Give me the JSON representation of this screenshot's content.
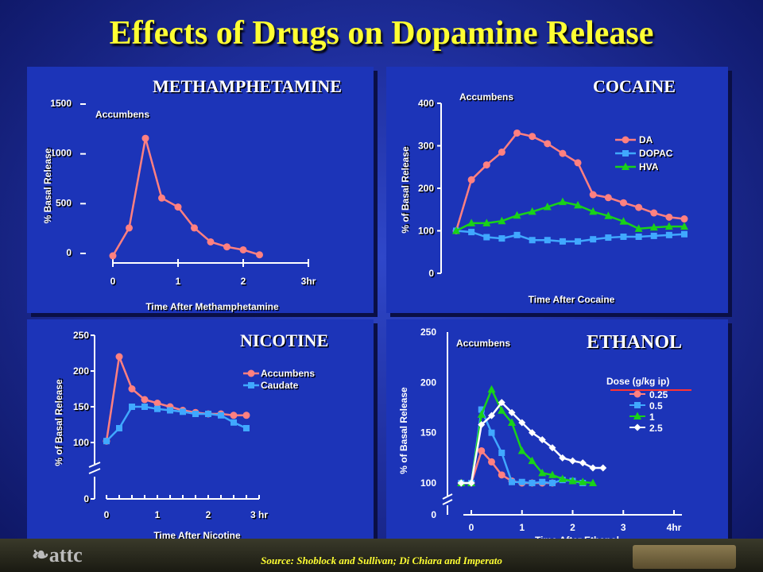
{
  "slide": {
    "title": "Effects of Drugs on Dopamine Release",
    "source": "Source: Shoblock and Sullivan; Di Chiara and Imperato"
  },
  "colors": {
    "title": "#ffff33",
    "panel": "#1c34b8",
    "series_pink": "#ff8080",
    "series_blue": "#40a8ff",
    "series_green": "#19d219",
    "series_white": "#ffffff"
  },
  "chart_data": [
    {
      "id": "meth",
      "type": "line",
      "title": "METHAMPHETAMINE",
      "annotation": "Accumbens",
      "xlabel": "Time After Methamphetamine",
      "ylabel": "% Basal Release",
      "xticks": [
        "0",
        "1",
        "2",
        "3hr"
      ],
      "yticks": [
        "0",
        "500",
        "1000",
        "1500"
      ],
      "xlim": [
        0,
        3
      ],
      "ylim": [
        0,
        1500
      ],
      "series": [
        {
          "color": "#ff8080",
          "marker": "circle",
          "x": [
            0,
            0.25,
            0.5,
            0.75,
            1.0,
            1.25,
            1.5,
            1.75,
            2.0,
            2.25
          ],
          "values": [
            0,
            280,
            1180,
            580,
            490,
            280,
            140,
            90,
            60,
            10
          ]
        }
      ]
    },
    {
      "id": "cocaine",
      "type": "line",
      "title": "COCAINE",
      "annotation": "Accumbens",
      "xlabel": "Time After Cocaine",
      "ylabel": "% of Basal Release",
      "yticks": [
        "0",
        "100",
        "200",
        "300",
        "400"
      ],
      "ylim": [
        0,
        400
      ],
      "series": [
        {
          "name": "DA",
          "color": "#ff8080",
          "marker": "circle",
          "values": [
            100,
            220,
            255,
            285,
            330,
            322,
            305,
            282,
            260,
            185,
            178,
            166,
            155,
            142,
            132,
            128
          ]
        },
        {
          "name": "DOPAC",
          "color": "#40a8ff",
          "marker": "square",
          "values": [
            100,
            97,
            85,
            82,
            90,
            78,
            78,
            75,
            75,
            80,
            84,
            86,
            86,
            88,
            90,
            92
          ]
        },
        {
          "name": "HVA",
          "color": "#19d219",
          "marker": "triangle",
          "values": [
            100,
            118,
            118,
            123,
            136,
            145,
            156,
            168,
            160,
            145,
            135,
            122,
            105,
            108,
            110,
            110
          ]
        }
      ]
    },
    {
      "id": "nicotine",
      "type": "line",
      "title": "NICOTINE",
      "xlabel": "Time After Nicotine",
      "ylabel": "% of Basal Release",
      "xticks": [
        "0",
        "1",
        "2",
        "3 hr"
      ],
      "yticks": [
        "0",
        "100",
        "150",
        "200",
        "250"
      ],
      "xlim": [
        0,
        3
      ],
      "ylim": [
        0,
        250
      ],
      "axis_break": "y",
      "series": [
        {
          "name": "Accumbens",
          "color": "#ff8080",
          "marker": "circle",
          "x": [
            0,
            0.25,
            0.5,
            0.75,
            1.0,
            1.25,
            1.5,
            1.75,
            2.0,
            2.25,
            2.5,
            2.75
          ],
          "values": [
            102,
            220,
            175,
            160,
            155,
            150,
            145,
            142,
            140,
            140,
            138,
            138
          ]
        },
        {
          "name": "Caudate",
          "color": "#40a8ff",
          "marker": "square",
          "x": [
            0,
            0.25,
            0.5,
            0.75,
            1.0,
            1.25,
            1.5,
            1.75,
            2.0,
            2.25,
            2.5,
            2.75
          ],
          "values": [
            102,
            120,
            150,
            150,
            147,
            145,
            143,
            140,
            140,
            138,
            128,
            120
          ]
        }
      ]
    },
    {
      "id": "ethanol",
      "type": "line",
      "title": "ETHANOL",
      "annotation": "Accumbens",
      "xlabel": "Time After Ethanol",
      "ylabel": "% of Basal Release",
      "xticks": [
        "0",
        "1",
        "2",
        "3",
        "4hr"
      ],
      "yticks": [
        "0",
        "100",
        "150",
        "200",
        "250"
      ],
      "xlim": [
        0,
        4
      ],
      "ylim": [
        0,
        250
      ],
      "axis_break": "y",
      "legend_title": "Dose (g/kg ip)",
      "series": [
        {
          "name": "0.25",
          "color": "#ff8080",
          "marker": "circle",
          "x": [
            -0.2,
            0,
            0.2,
            0.4,
            0.6,
            0.8,
            1.0,
            1.2,
            1.4,
            1.6
          ],
          "values": [
            100,
            100,
            132,
            121,
            108,
            102,
            100,
            100,
            100,
            100
          ]
        },
        {
          "name": "0.5",
          "color": "#40a8ff",
          "marker": "square",
          "x": [
            -0.2,
            0,
            0.2,
            0.4,
            0.6,
            0.8,
            1.0,
            1.2,
            1.4,
            1.6,
            1.8,
            2.0,
            2.2
          ],
          "values": [
            100,
            100,
            173,
            150,
            130,
            101,
            101,
            100,
            101,
            100,
            103,
            102,
            100
          ]
        },
        {
          "name": "1",
          "color": "#19d219",
          "marker": "triangle",
          "x": [
            -0.2,
            0,
            0.2,
            0.4,
            0.6,
            0.8,
            1.0,
            1.2,
            1.4,
            1.6,
            1.8,
            2.0,
            2.2,
            2.4
          ],
          "values": [
            100,
            100,
            168,
            193,
            172,
            160,
            132,
            122,
            110,
            108,
            104,
            102,
            101,
            100
          ]
        },
        {
          "name": "2.5",
          "color": "#ffffff",
          "marker": "diamond",
          "x": [
            -0.2,
            0,
            0.2,
            0.4,
            0.6,
            0.8,
            1.0,
            1.2,
            1.4,
            1.6,
            1.8,
            2.0,
            2.2,
            2.4,
            2.6
          ],
          "values": [
            100,
            100,
            158,
            167,
            180,
            170,
            160,
            150,
            143,
            135,
            125,
            122,
            120,
            115,
            115
          ]
        }
      ]
    }
  ]
}
